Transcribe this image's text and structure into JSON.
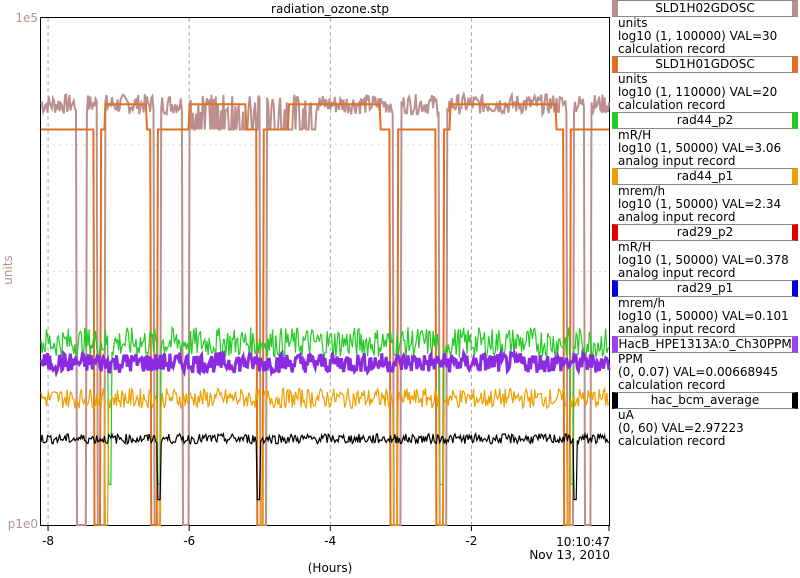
{
  "chart_data": {
    "type": "line",
    "title": "radiation_ozone.stp",
    "ylabel": "units",
    "xlabel": "(Hours)",
    "y_ticks": [
      "1e5",
      "p1e0"
    ],
    "x_ticks": [
      "-8",
      "-6",
      "-4",
      "-2"
    ],
    "end_time": "10:10:47",
    "end_date": "Nov 13, 2010",
    "xlim": [
      -8.1,
      -0.05
    ],
    "ylim_log10": [
      0,
      5
    ],
    "y_scale": "log",
    "grid": true,
    "series": [
      {
        "color": "#bc8f8f",
        "baseline": 0.83,
        "jitter": 0.02,
        "drops": [
          [
            -7.6,
            -7.45
          ],
          [
            -7.3,
            -7.2
          ],
          [
            -6.5,
            -6.4
          ],
          [
            -6.1,
            -6.0
          ],
          [
            -5.0,
            -4.9
          ],
          [
            -3.1,
            -3.0
          ],
          [
            -2.45,
            -2.35
          ],
          [
            -0.65,
            -0.55
          ],
          [
            -0.4,
            -0.3
          ]
        ],
        "dense": [
          [
            -6.1,
            -4.2
          ]
        ],
        "low": 0.0
      },
      {
        "color": "#e07020",
        "baseline": 0.78,
        "jitter": 0.0,
        "drops": [
          [
            -7.35,
            -7.25
          ],
          [
            -6.55,
            -6.45
          ],
          [
            -5.05,
            -4.95
          ],
          [
            -3.15,
            -3.05
          ],
          [
            -2.5,
            -2.4
          ],
          [
            -0.7,
            -0.6
          ]
        ],
        "steps": [
          [
            -7.2,
            -6.6,
            0.83
          ],
          [
            -6.0,
            -5.2,
            0.83
          ],
          [
            -4.6,
            -3.3,
            0.83
          ],
          [
            -2.3,
            -0.8,
            0.83
          ]
        ],
        "low": 0.0
      },
      {
        "color": "#22cc22",
        "baseline": 0.36,
        "jitter": 0.03,
        "drops": [
          [
            -7.15,
            -7.1
          ],
          [
            -6.45,
            -6.4
          ],
          [
            -2.45,
            -2.4
          ],
          [
            -0.6,
            -0.55
          ]
        ],
        "low": 0.08
      },
      {
        "color": "#f0a000",
        "baseline": 0.25,
        "jitter": 0.02,
        "drops": [
          [
            -7.2,
            -7.15
          ],
          [
            -6.45,
            -6.4
          ],
          [
            -5.0,
            -4.95
          ],
          [
            -3.1,
            -3.05
          ],
          [
            -2.45,
            -2.4
          ],
          [
            -0.65,
            -0.6
          ]
        ],
        "low": 0.0
      },
      {
        "color": "#8a2be2",
        "baseline": 0.32,
        "jitter": 0.02,
        "drops": [],
        "low": 0.3
      },
      {
        "color": "#000000",
        "baseline": 0.17,
        "jitter": 0.01,
        "drops": [
          [
            -6.45,
            -6.4
          ],
          [
            -5.05,
            -5.0
          ],
          [
            -0.55,
            -0.5
          ]
        ],
        "low": 0.05
      }
    ]
  },
  "legend": [
    {
      "name": "SLD1H02GDOSC",
      "color": "#bc8f8f",
      "units": "units",
      "range": "log10 (1, 100000) VAL=30",
      "type": "calculation record"
    },
    {
      "name": "SLD1H01GDOSC",
      "color": "#e07020",
      "units": "units",
      "range": "log10 (1, 110000) VAL=20",
      "type": "calculation record"
    },
    {
      "name": "rad44_p2",
      "color": "#22cc22",
      "units": "mR/H",
      "range": "log10 (1, 50000) VAL=3.06",
      "type": "analog input record"
    },
    {
      "name": "rad44_p1",
      "color": "#f0a000",
      "units": "mrem/h",
      "range": "log10 (1, 50000) VAL=2.34",
      "type": "analog input record"
    },
    {
      "name": "rad29_p2",
      "color": "#e00000",
      "units": "mR/H",
      "range": "log10 (1, 50000) VAL=0.378",
      "type": "analog input record"
    },
    {
      "name": "rad29_p1",
      "color": "#0000e0",
      "units": "mrem/h",
      "range": "log10 (1, 50000) VAL=0.101",
      "type": "analog input record"
    },
    {
      "name": "HacB_HPE1313A:0_Ch30PPM",
      "color": "#a040f0",
      "units": "PPM",
      "range": "(0, 0.07) VAL=0.00668945",
      "type": "calculation record"
    },
    {
      "name": "hac_bcm_average",
      "color": "#000000",
      "units": "uA",
      "range": "(0, 60) VAL=2.97223",
      "type": "calculation record"
    }
  ]
}
